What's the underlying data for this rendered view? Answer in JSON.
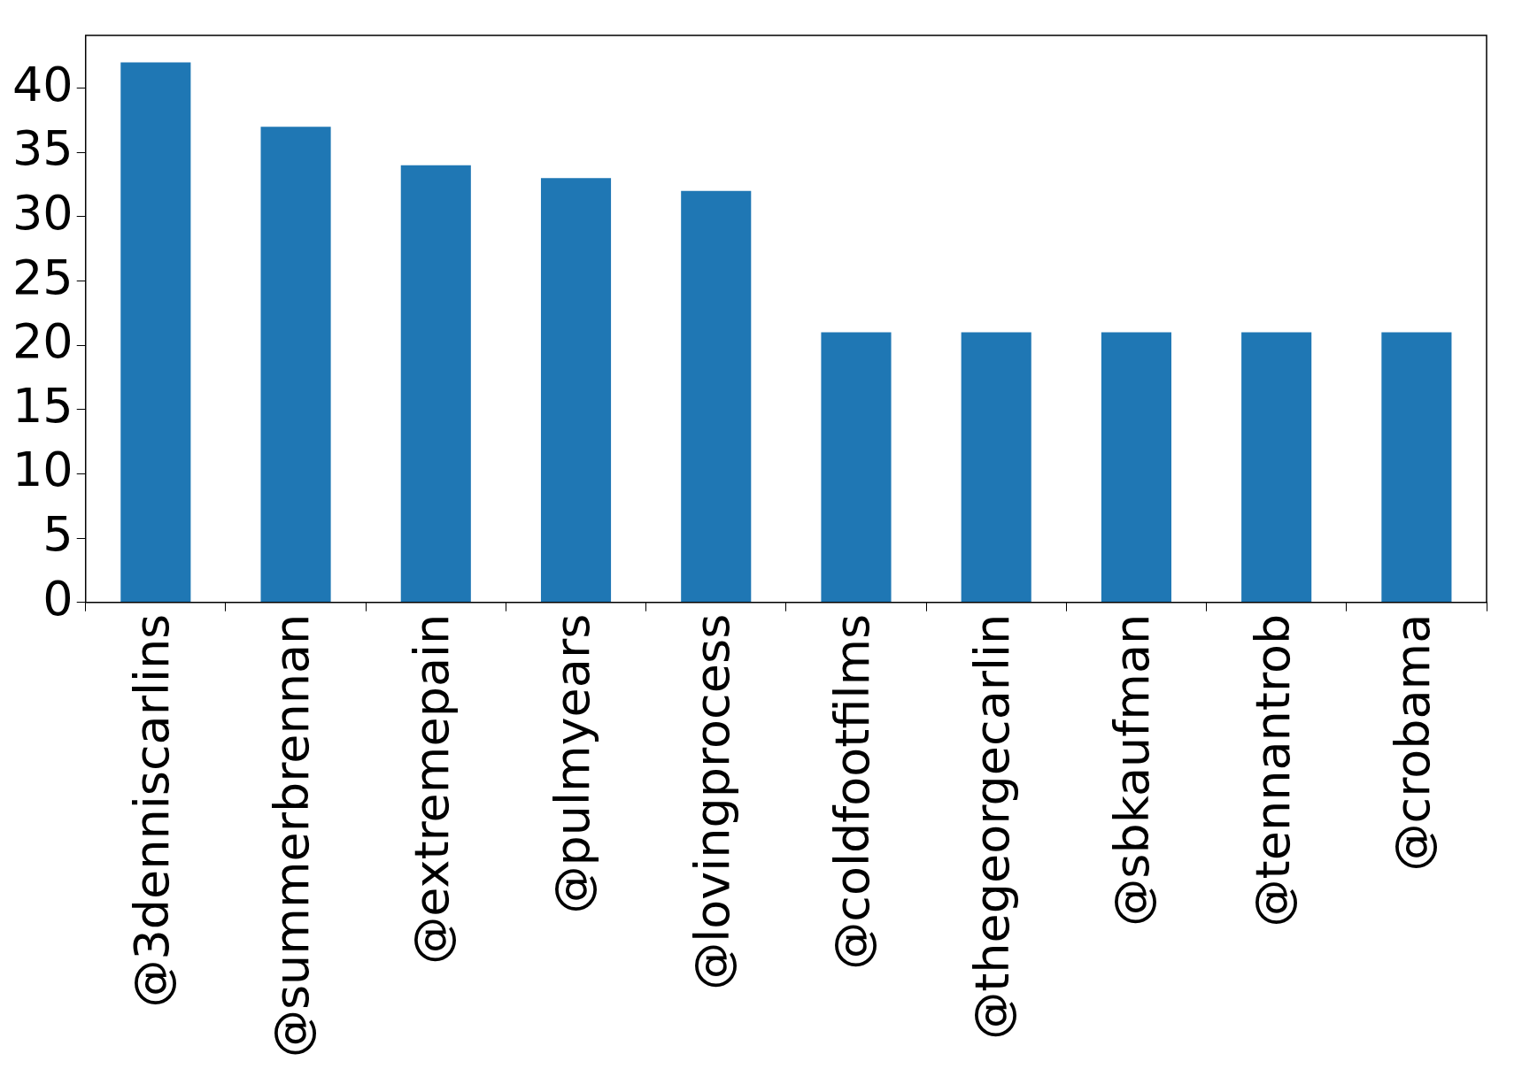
{
  "chart_data": {
    "type": "bar",
    "categories": [
      "@3denniscarlins",
      "@summerbrennan",
      "@extremepain",
      "@pulmyears",
      "@lovingprocess",
      "@coldfootfilms",
      "@thegeorgecarlin",
      "@sbkaufman",
      "@tennantrob",
      "@crobama"
    ],
    "values": [
      42,
      37,
      34,
      33,
      32,
      21,
      21,
      21,
      21,
      21
    ],
    "color": "#1f77b4",
    "ylim": [
      0,
      44.1
    ],
    "yticks": [
      0,
      5,
      10,
      15,
      20,
      25,
      30,
      35,
      40
    ],
    "grid": false,
    "legend": false
  }
}
